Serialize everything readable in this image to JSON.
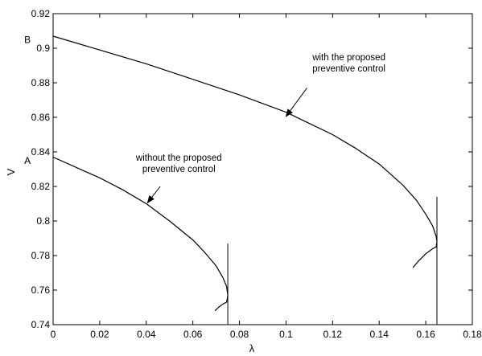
{
  "chart_data": {
    "type": "line",
    "title": "",
    "xlabel": "λ",
    "ylabel": "V",
    "xlim": [
      0,
      0.18
    ],
    "ylim": [
      0.74,
      0.92
    ],
    "x_ticks": [
      "0",
      "0.02",
      "0.04",
      "0.06",
      "0.08",
      "0.1",
      "0.12",
      "0.14",
      "0.16",
      "0.18"
    ],
    "y_ticks": [
      "0.74",
      "0.76",
      "0.78",
      "0.8",
      "0.82",
      "0.84",
      "0.86",
      "0.88",
      "0.9",
      "0.92"
    ],
    "grid": false,
    "series": [
      {
        "x": [
          0,
          0.01,
          0.02,
          0.03,
          0.04,
          0.05,
          0.06,
          0.065,
          0.07,
          0.073,
          0.0745,
          0.075,
          0.0745,
          0.073,
          0.071,
          0.0695
        ],
        "y": [
          0.837,
          0.831,
          0.825,
          0.818,
          0.81,
          0.8,
          0.789,
          0.782,
          0.774,
          0.767,
          0.762,
          0.757,
          0.753,
          0.752,
          0.75,
          0.748
        ]
      },
      {
        "x": [
          0,
          0.02,
          0.04,
          0.06,
          0.08,
          0.1,
          0.12,
          0.13,
          0.14,
          0.15,
          0.156,
          0.16,
          0.163,
          0.1645,
          0.1648,
          0.1645,
          0.163,
          0.16,
          0.157,
          0.1545
        ],
        "y": [
          0.907,
          0.899,
          0.891,
          0.882,
          0.873,
          0.863,
          0.85,
          0.842,
          0.833,
          0.821,
          0.812,
          0.804,
          0.797,
          0.791,
          0.788,
          0.785,
          0.784,
          0.781,
          0.777,
          0.773
        ]
      }
    ],
    "vertical_markers": [
      {
        "x": 0.075,
        "y_from": 0.74,
        "y_to": 0.787
      },
      {
        "x": 0.1648,
        "y_from": 0.74,
        "y_to": 0.814
      }
    ],
    "point_labels": [
      {
        "text": "A",
        "x": -0.011,
        "y": 0.833
      },
      {
        "text": "B",
        "x": -0.011,
        "y": 0.903
      }
    ],
    "annotations": [
      {
        "lines": [
          "with the proposed",
          "preventive control"
        ],
        "text_x": 0.127,
        "text_y": 0.893,
        "arrow_from": [
          0.109,
          0.877
        ],
        "arrow_to": [
          0.1,
          0.8605
        ]
      },
      {
        "lines": [
          "without the proposed",
          "preventive control"
        ],
        "text_x": 0.054,
        "text_y": 0.835,
        "arrow_from": [
          0.046,
          0.82
        ],
        "arrow_to": [
          0.0405,
          0.8105
        ]
      }
    ]
  }
}
